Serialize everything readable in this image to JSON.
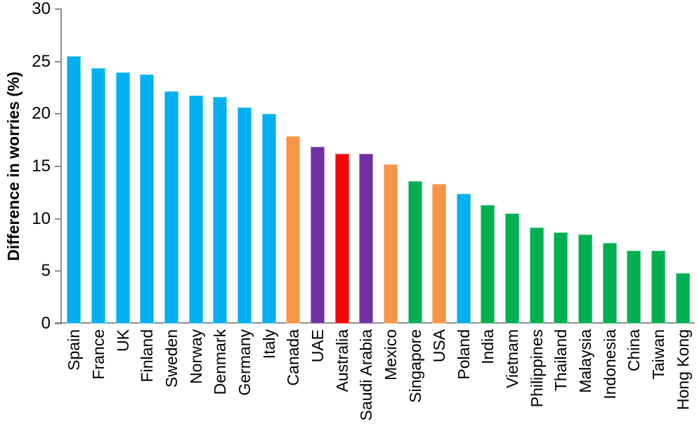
{
  "chart_data": {
    "type": "bar",
    "title": "",
    "xlabel": "",
    "ylabel": "Difference in worries (%)",
    "ylim": [
      0,
      30
    ],
    "yticks": [
      0,
      5,
      10,
      15,
      20,
      25,
      30
    ],
    "grid": false,
    "legend_position": "none",
    "x_label_rotation_deg": 90,
    "categories": [
      "Spain",
      "France",
      "UK",
      "Finland",
      "Sweden",
      "Norway",
      "Denmark",
      "Germany",
      "Italy",
      "Canada",
      "UAE",
      "Australia",
      "Saudi Arabia",
      "Mexico",
      "Singapore",
      "USA",
      "Poland",
      "India",
      "Vietnam",
      "Philippines",
      "Thailand",
      "Malaysia",
      "Indonesia",
      "China",
      "Taiwan",
      "Hong Kong"
    ],
    "values": [
      25.5,
      24.4,
      24.0,
      23.8,
      22.2,
      21.8,
      21.6,
      20.6,
      20.0,
      17.9,
      16.9,
      16.2,
      16.2,
      15.2,
      13.6,
      13.3,
      12.4,
      11.3,
      10.5,
      9.2,
      8.7,
      8.5,
      7.7,
      7.0,
      7.0,
      4.8
    ],
    "bar_colors": [
      "#00B0F0",
      "#00B0F0",
      "#00B0F0",
      "#00B0F0",
      "#00B0F0",
      "#00B0F0",
      "#00B0F0",
      "#00B0F0",
      "#00B0F0",
      "#F79646",
      "#7030A0",
      "#FF0000",
      "#7030A0",
      "#F79646",
      "#00B050",
      "#F79646",
      "#00B0F0",
      "#00B050",
      "#00B050",
      "#00B050",
      "#00B050",
      "#00B050",
      "#00B050",
      "#00B050",
      "#00B050",
      "#00B050"
    ],
    "palette": {
      "blue": "#00B0F0",
      "orange": "#F79646",
      "purple": "#7030A0",
      "red": "#FF0000",
      "green": "#00B050"
    },
    "axis_color": "#8C8C8C",
    "text_color": "#000000"
  }
}
